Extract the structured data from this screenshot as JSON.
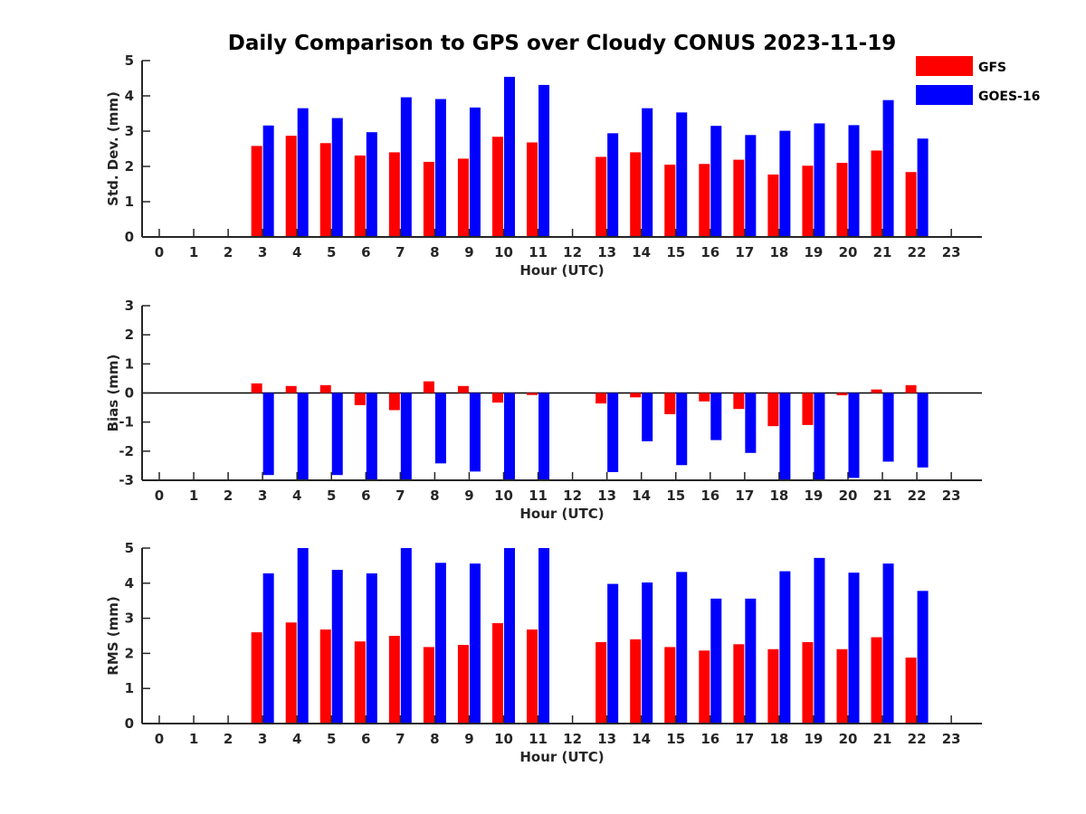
{
  "chart_data": {
    "type": "bar",
    "title": "Daily Comparison to GPS over Cloudy CONUS 2023-11-19",
    "legend": {
      "placement": "top-right",
      "entries": [
        {
          "name": "GFS",
          "color": "#ff0000"
        },
        {
          "name": "GOES-16",
          "color": "#0000ff"
        }
      ]
    },
    "colors": {
      "GFS": "#ff0000",
      "GOES-16": "#0000ff"
    },
    "subplots": [
      {
        "id": "stddev",
        "ylabel": "Std. Dev. (mm)",
        "xlabel": "Hour (UTC)",
        "ylim": [
          0,
          5
        ],
        "yticks": [
          0,
          1,
          2,
          3,
          4,
          5
        ],
        "categories": [
          "0",
          "1",
          "2",
          "3",
          "4",
          "5",
          "6",
          "7",
          "8",
          "9",
          "10",
          "11",
          "12",
          "13",
          "14",
          "15",
          "16",
          "17",
          "18",
          "19",
          "20",
          "21",
          "22",
          "23"
        ],
        "series": [
          {
            "name": "GFS",
            "values": [
              null,
              null,
              null,
              2.58,
              2.87,
              2.66,
              2.31,
              2.4,
              2.13,
              2.22,
              2.84,
              2.68,
              null,
              2.27,
              2.4,
              2.05,
              2.07,
              2.19,
              1.77,
              2.02,
              2.1,
              2.45,
              1.84,
              null
            ]
          },
          {
            "name": "GOES-16",
            "values": [
              null,
              null,
              null,
              3.16,
              3.65,
              3.37,
              2.97,
              3.96,
              3.91,
              3.67,
              4.54,
              4.31,
              null,
              2.94,
              3.65,
              3.53,
              3.15,
              2.89,
              3.01,
              3.22,
              3.17,
              3.88,
              2.79,
              null
            ]
          }
        ]
      },
      {
        "id": "bias",
        "ylabel": "Bias (mm)",
        "xlabel": "Hour (UTC)",
        "ylim": [
          -3,
          3
        ],
        "yticks": [
          -3,
          -2,
          -1,
          0,
          1,
          2,
          3
        ],
        "categories": [
          "0",
          "1",
          "2",
          "3",
          "4",
          "5",
          "6",
          "7",
          "8",
          "9",
          "10",
          "11",
          "12",
          "13",
          "14",
          "15",
          "16",
          "17",
          "18",
          "19",
          "20",
          "21",
          "22",
          "23"
        ],
        "series": [
          {
            "name": "GFS",
            "values": [
              null,
              null,
              null,
              0.33,
              0.24,
              0.27,
              -0.42,
              -0.59,
              0.4,
              0.24,
              -0.33,
              -0.07,
              null,
              -0.36,
              -0.15,
              -0.73,
              -0.29,
              -0.55,
              -1.14,
              -1.1,
              -0.08,
              0.12,
              0.27,
              null
            ]
          },
          {
            "name": "GOES-16",
            "values": [
              null,
              null,
              null,
              -2.82,
              -3.0,
              -2.82,
              -3.0,
              -3.0,
              -2.42,
              -2.7,
              -3.0,
              -3.0,
              null,
              -2.72,
              -1.66,
              -2.48,
              -1.62,
              -2.06,
              -3.0,
              -3.0,
              -2.92,
              -2.36,
              -2.56,
              null
            ]
          }
        ]
      },
      {
        "id": "rms",
        "ylabel": "RMS (mm)",
        "xlabel": "Hour (UTC)",
        "ylim": [
          0,
          5
        ],
        "yticks": [
          0,
          1,
          2,
          3,
          4,
          5
        ],
        "categories": [
          "0",
          "1",
          "2",
          "3",
          "4",
          "5",
          "6",
          "7",
          "8",
          "9",
          "10",
          "11",
          "12",
          "13",
          "14",
          "15",
          "16",
          "17",
          "18",
          "19",
          "20",
          "21",
          "22",
          "23"
        ],
        "series": [
          {
            "name": "GFS",
            "values": [
              null,
              null,
              null,
              2.6,
              2.88,
              2.68,
              2.34,
              2.5,
              2.18,
              2.24,
              2.86,
              2.68,
              null,
              2.32,
              2.4,
              2.18,
              2.08,
              2.26,
              2.12,
              2.32,
              2.12,
              2.46,
              1.88,
              null
            ]
          },
          {
            "name": "GOES-16",
            "values": [
              null,
              null,
              null,
              4.28,
              5.0,
              4.38,
              4.28,
              5.0,
              4.58,
              4.56,
              5.0,
              5.0,
              null,
              3.98,
              4.02,
              4.32,
              3.56,
              3.56,
              4.34,
              4.72,
              4.3,
              4.56,
              3.78,
              null
            ]
          }
        ]
      }
    ]
  }
}
